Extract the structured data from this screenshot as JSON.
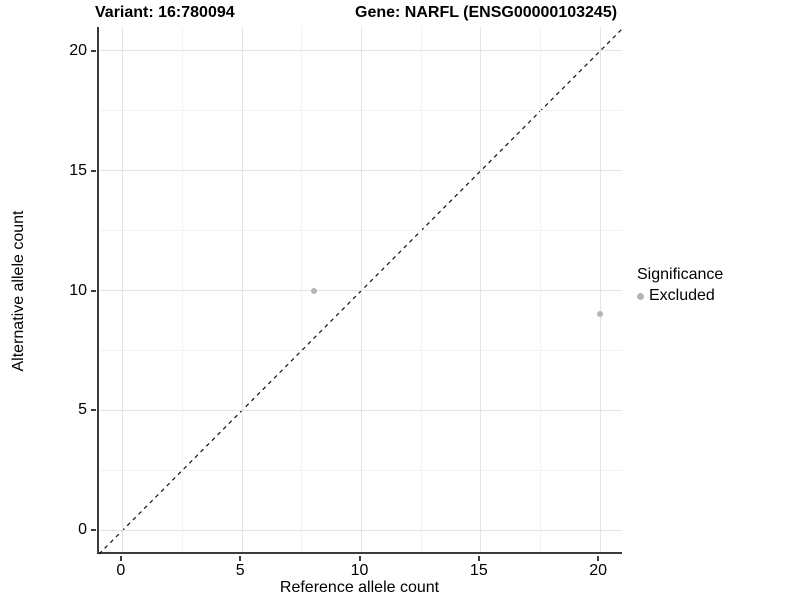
{
  "chart_data": {
    "type": "scatter",
    "title_left": "Variant: 16:780094",
    "title_right": "Gene: NARFL (ENSG00000103245)",
    "xlabel": "Reference allele count",
    "ylabel": "Alternative allele count",
    "xlim": [
      -1,
      21
    ],
    "ylim": [
      -1,
      21
    ],
    "xticks": [
      0,
      5,
      10,
      15,
      20
    ],
    "yticks": [
      0,
      5,
      10,
      15,
      20
    ],
    "xticks_minor": [
      2.5,
      7.5,
      12.5,
      17.5
    ],
    "yticks_minor": [
      2.5,
      7.5,
      12.5,
      17.5
    ],
    "grid": "major-and-minor",
    "legend_position": "right",
    "reference_line": {
      "type": "identity y=x",
      "style": "dashed",
      "color": "#111111",
      "x1": -1,
      "y1": -1,
      "x2": 21,
      "y2": 21
    },
    "series": [
      {
        "name": "Excluded",
        "color": "#b4b4b4",
        "points": [
          {
            "x": 8,
            "y": 10
          },
          {
            "x": 20,
            "y": 9
          }
        ]
      }
    ],
    "legend": {
      "title": "Significance",
      "items": [
        {
          "label": "Excluded",
          "color": "#b4b4b4"
        }
      ]
    }
  },
  "colors": {
    "grid_major": "#e4e4e4",
    "grid_minor": "#f2f2f2",
    "axis_line": "#3c3c3c",
    "point": "#b4b4b4",
    "background": "#ffffff"
  }
}
